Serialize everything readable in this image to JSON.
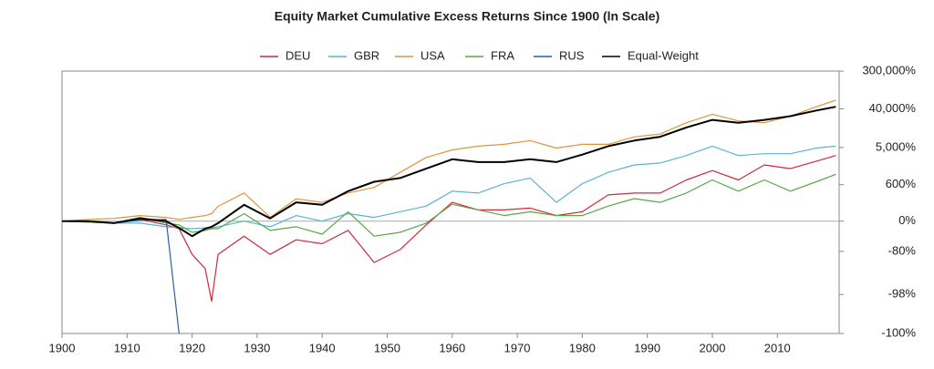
{
  "chart_data": {
    "type": "line",
    "title": "Equity Market Cumulative Excess Returns Since 1900 (ln Scale)",
    "yscale": "log",
    "x": [
      1900,
      1904,
      1908,
      1912,
      1916,
      1918,
      1920,
      1922,
      1923,
      1924,
      1928,
      1932,
      1936,
      1940,
      1944,
      1948,
      1952,
      1956,
      1960,
      1964,
      1968,
      1972,
      1976,
      1980,
      1984,
      1988,
      1992,
      1996,
      2000,
      2004,
      2008,
      2012,
      2016,
      2019
    ],
    "series": [
      {
        "name": "DEU",
        "color": "#d0293b",
        "values": [
          0,
          0,
          -10,
          10,
          -18,
          -33,
          -83,
          -92,
          -98.6,
          -83,
          -55,
          -83,
          -63,
          -70,
          -39,
          -89,
          -78,
          -18,
          172,
          82,
          82,
          101,
          35,
          65,
          306,
          348,
          348,
          803,
          1388,
          803,
          1909,
          1544,
          2353,
          3212
        ]
      },
      {
        "name": "GBR",
        "color": "#5ab4d0",
        "values": [
          0,
          -5,
          -10,
          -10,
          -26,
          -30,
          -33,
          -30,
          -30,
          -26,
          0,
          -26,
          35,
          0,
          49,
          22,
          65,
          123,
          395,
          348,
          639,
          897,
          172,
          639,
          1246,
          1909,
          2120,
          3212,
          5360,
          3212,
          3560,
          3560,
          4840,
          5360
        ]
      },
      {
        "name": "USA",
        "color": "#e0943e",
        "values": [
          0,
          10,
          16,
          35,
          22,
          10,
          22,
          35,
          49,
          120,
          350,
          22,
          230,
          172,
          350,
          505,
          1250,
          2900,
          4370,
          5360,
          5930,
          7270,
          4840,
          5930,
          5930,
          8900,
          10360,
          18970,
          29800,
          20960,
          18970,
          26944,
          44460,
          63200
        ]
      },
      {
        "name": "FRA",
        "color": "#5aa645",
        "values": [
          0,
          -5,
          -10,
          22,
          -10,
          -18,
          -45,
          -39,
          -33,
          -33,
          49,
          -39,
          -26,
          -50,
          65,
          -55,
          -45,
          -10,
          146,
          82,
          35,
          65,
          35,
          35,
          123,
          232,
          172,
          348,
          803,
          395,
          803,
          395,
          717,
          1118
        ]
      },
      {
        "name": "RUS",
        "color": "#2c5fa8",
        "values": [
          0,
          0,
          -10,
          5,
          10,
          -99.75,
          null,
          null,
          null,
          null,
          null,
          null,
          null,
          null,
          null,
          null,
          null,
          null,
          null,
          null,
          null,
          null,
          null,
          null,
          null,
          null,
          null,
          null,
          null,
          null,
          null,
          null,
          null,
          null
        ]
      },
      {
        "name": "Equal-Weight",
        "color": "#000000",
        "values": [
          0,
          0,
          -10,
          16,
          0,
          -30,
          -55,
          -33,
          -26,
          -10,
          139,
          16,
          172,
          139,
          395,
          717,
          897,
          1544,
          2611,
          2233,
          2233,
          2611,
          2233,
          3381,
          5360,
          7270,
          8902,
          14741,
          22040,
          18970,
          22040,
          26944,
          36400,
          44460
        ]
      }
    ],
    "xlim": [
      1900,
      2019.5
    ],
    "xticks": [
      1900,
      1910,
      1920,
      1930,
      1940,
      1950,
      1960,
      1970,
      1980,
      1990,
      2000,
      2010
    ],
    "ylim": [
      -99.75,
      300000
    ],
    "yticks": [
      {
        "value": 300000,
        "label": "300,000%"
      },
      {
        "value": 40000,
        "label": "40,000%"
      },
      {
        "value": 5000,
        "label": "5,000%"
      },
      {
        "value": 600,
        "label": "600%"
      },
      {
        "value": 0,
        "label": "0%"
      },
      {
        "value": -80,
        "label": "-80%"
      },
      {
        "value": -98,
        "label": "-98%"
      },
      {
        "value": -99.75,
        "label": "-100%"
      }
    ]
  }
}
